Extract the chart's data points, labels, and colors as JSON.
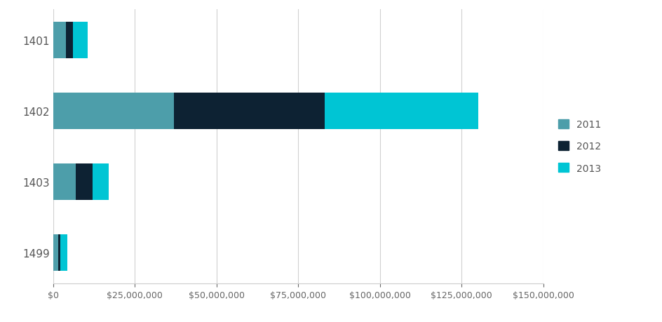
{
  "categories": [
    "1401",
    "1402",
    "1403",
    "1499"
  ],
  "years": [
    "2011",
    "2012",
    "2013"
  ],
  "values": {
    "1401": [
      4000000,
      2000000,
      4500000
    ],
    "1402": [
      37000000,
      46000000,
      47000000
    ],
    "1403": [
      7000000,
      5000000,
      5000000
    ],
    "1499": [
      1500000,
      800000,
      2000000
    ]
  },
  "colors": {
    "2011": "#4d9eaa",
    "2012": "#0d2233",
    "2013": "#00c5d4"
  },
  "xlim": [
    0,
    150000000
  ],
  "xticks": [
    0,
    25000000,
    50000000,
    75000000,
    100000000,
    125000000,
    150000000
  ],
  "background_color": "#ffffff",
  "bar_height": 0.52,
  "legend_labels": [
    "2011",
    "2012",
    "2013"
  ],
  "figsize": [
    9.45,
    4.6
  ],
  "dpi": 100
}
